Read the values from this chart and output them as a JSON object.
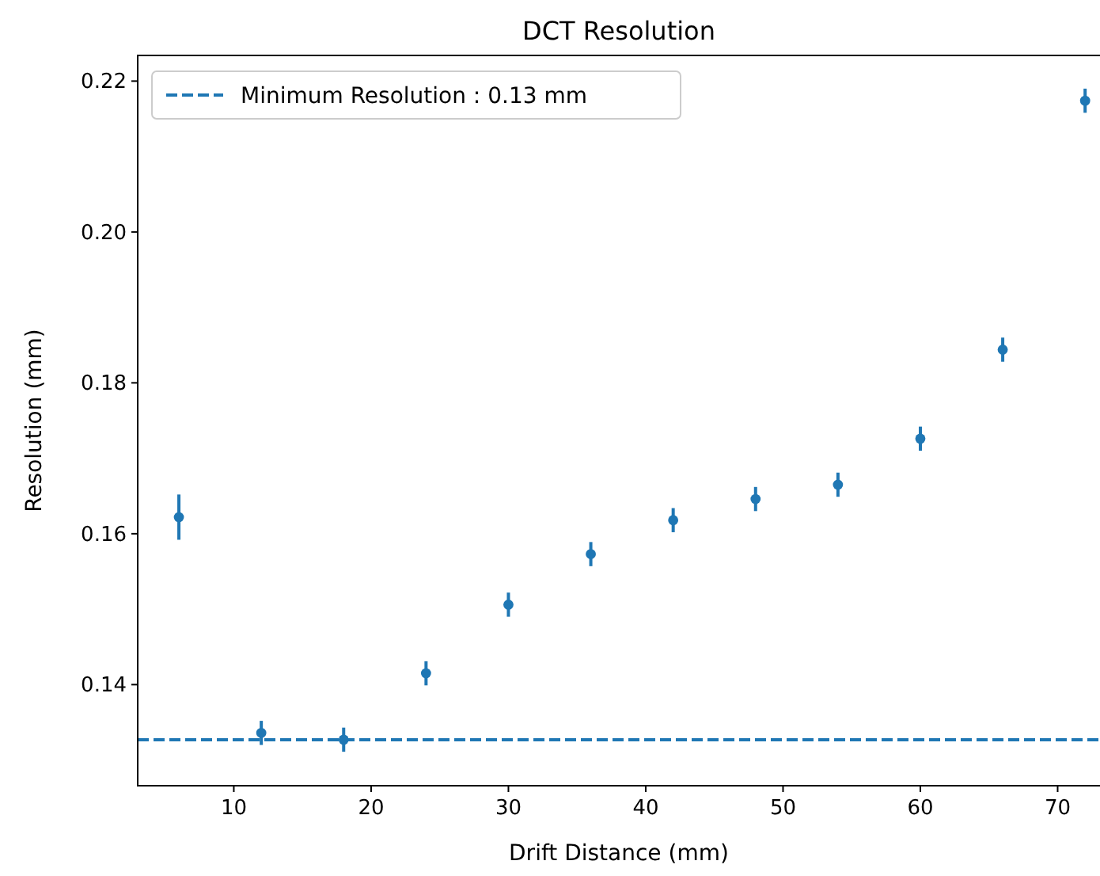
{
  "chart_data": {
    "type": "scatter",
    "title": "DCT Resolution",
    "xlabel": "Drift Distance (mm)",
    "ylabel": "Resolution (mm)",
    "x": [
      6,
      12,
      18,
      24,
      30,
      36,
      42,
      48,
      54,
      60,
      66,
      72
    ],
    "series": [
      {
        "color": "#1f77b4",
        "values": [
          0.1622,
          0.1336,
          0.1327,
          0.1415,
          0.1506,
          0.1573,
          0.1618,
          0.1646,
          0.1665,
          0.1726,
          0.1844,
          0.2174
        ],
        "errors": [
          0.003,
          0.0016,
          0.0016,
          0.0016,
          0.0016,
          0.0016,
          0.0016,
          0.0016,
          0.0016,
          0.0016,
          0.0016,
          0.0016
        ]
      }
    ],
    "ref_lines": [
      {
        "axis": "y",
        "value": 0.1327,
        "label": "Minimum Resolution : 0.13 mm",
        "color": "#1f77b4",
        "line_style": "dashed"
      }
    ],
    "xlim": [
      3,
      73.2
    ],
    "ylim": [
      0.1266,
      0.2234
    ],
    "xticks": [
      10,
      20,
      30,
      40,
      50,
      60,
      70
    ],
    "yticks": [
      {
        "value": 0.14,
        "label": "0.14"
      },
      {
        "value": 0.16,
        "label": "0.16"
      },
      {
        "value": 0.18,
        "label": "0.18"
      },
      {
        "value": 0.2,
        "label": "0.20"
      },
      {
        "value": 0.22,
        "label": "0.22"
      }
    ],
    "marker": "circle",
    "legend": "top left",
    "grid": false
  }
}
